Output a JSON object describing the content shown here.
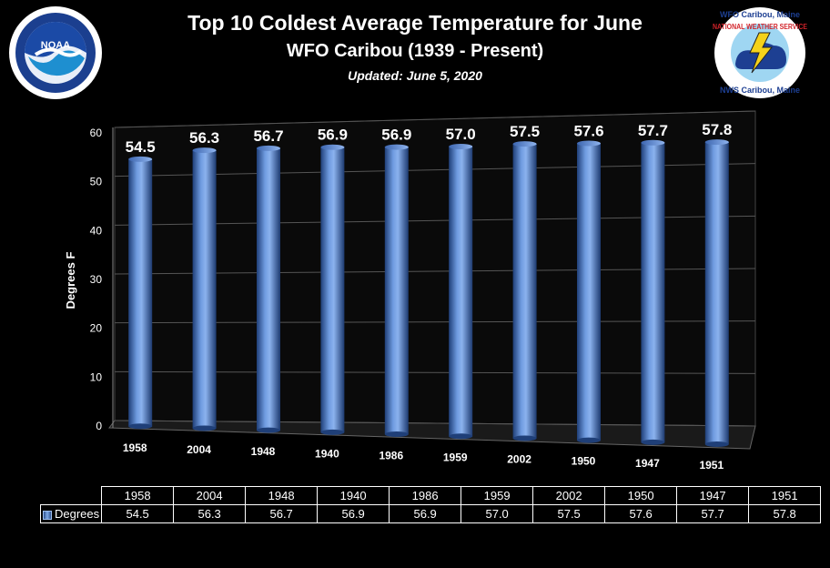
{
  "chart_data": {
    "type": "bar",
    "title": "Top 10 Coldest Average Temperature for June",
    "subtitle": "WFO Caribou (1939 - Present)",
    "updated": "Updated: June 5, 2020",
    "ylabel": "Degrees F",
    "xlabel": "",
    "ylim": [
      0,
      60
    ],
    "yticks": [
      "0",
      "10",
      "20",
      "30",
      "40",
      "50",
      "60"
    ],
    "categories": [
      "1958",
      "2004",
      "1948",
      "1940",
      "1986",
      "1959",
      "2002",
      "1950",
      "1947",
      "1951"
    ],
    "series": [
      {
        "name": "Degrees",
        "values": [
          54.5,
          56.3,
          56.7,
          56.9,
          56.9,
          57.0,
          57.5,
          57.6,
          57.7,
          57.8
        ]
      }
    ],
    "value_labels": [
      "54.5",
      "56.3",
      "56.7",
      "56.9",
      "56.9",
      "57.0",
      "57.5",
      "57.6",
      "57.7",
      "57.8"
    ],
    "grid": true,
    "legend": "data-table",
    "bar_color": "#4a7cc9"
  },
  "logos": {
    "left": {
      "icon": "noaa-logo",
      "text": "NOAA"
    },
    "right": {
      "icon": "nws-logo",
      "text_top": "WFO Caribou, Maine",
      "text_mid": "NATIONAL WEATHER SERVICE",
      "text_bottom": "NWS Caribou, Maine"
    }
  }
}
